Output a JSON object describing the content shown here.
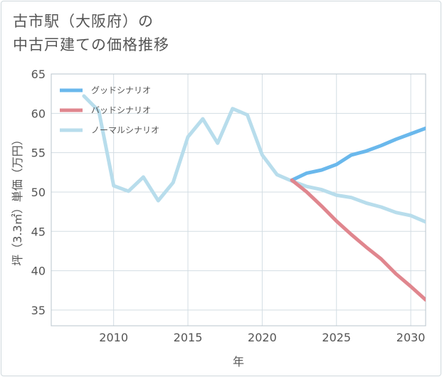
{
  "title_lines": [
    "古市駅（大阪府）の",
    "中古戸建ての価格推移"
  ],
  "chart_data": {
    "type": "line",
    "title": "古市駅（大阪府）の中古戸建ての価格推移",
    "xlabel": "年",
    "ylabel": "坪（3.3㎡）単価（万円）",
    "xlim": [
      2005.8,
      2031
    ],
    "ylim": [
      33,
      65
    ],
    "xticks": [
      2010,
      2015,
      2020,
      2025,
      2030
    ],
    "yticks": [
      35,
      40,
      45,
      50,
      55,
      60,
      65
    ],
    "grid": true,
    "legend_position": "top-left",
    "series": [
      {
        "name": "グッドシナリオ",
        "color": "#6ab8ec",
        "x": [
          2022,
          2023,
          2024,
          2025,
          2026,
          2027,
          2028,
          2029,
          2030,
          2031
        ],
        "values": [
          51.5,
          52.4,
          52.8,
          53.5,
          54.7,
          55.2,
          55.9,
          56.7,
          57.4,
          58.1
        ]
      },
      {
        "name": "バッドシナリオ",
        "color": "#e0868e",
        "x": [
          2022,
          2023,
          2024,
          2025,
          2026,
          2027,
          2028,
          2029,
          2030,
          2031
        ],
        "values": [
          51.5,
          50.0,
          48.2,
          46.3,
          44.6,
          43.0,
          41.5,
          39.6,
          38.0,
          36.3
        ]
      },
      {
        "name": "ノーマルシナリオ",
        "color": "#b8ddec",
        "x": [
          2008,
          2009,
          2010,
          2011,
          2012,
          2013,
          2014,
          2015,
          2016,
          2017,
          2018,
          2019,
          2020,
          2021,
          2022,
          2023,
          2024,
          2025,
          2026,
          2027,
          2028,
          2029,
          2030,
          2031
        ],
        "values": [
          62.2,
          60.3,
          50.8,
          50.1,
          51.9,
          48.9,
          51.2,
          57.0,
          59.3,
          56.2,
          60.6,
          59.8,
          54.7,
          52.2,
          51.4,
          50.7,
          50.3,
          49.6,
          49.3,
          48.6,
          48.1,
          47.4,
          47.0,
          46.2
        ]
      }
    ]
  }
}
